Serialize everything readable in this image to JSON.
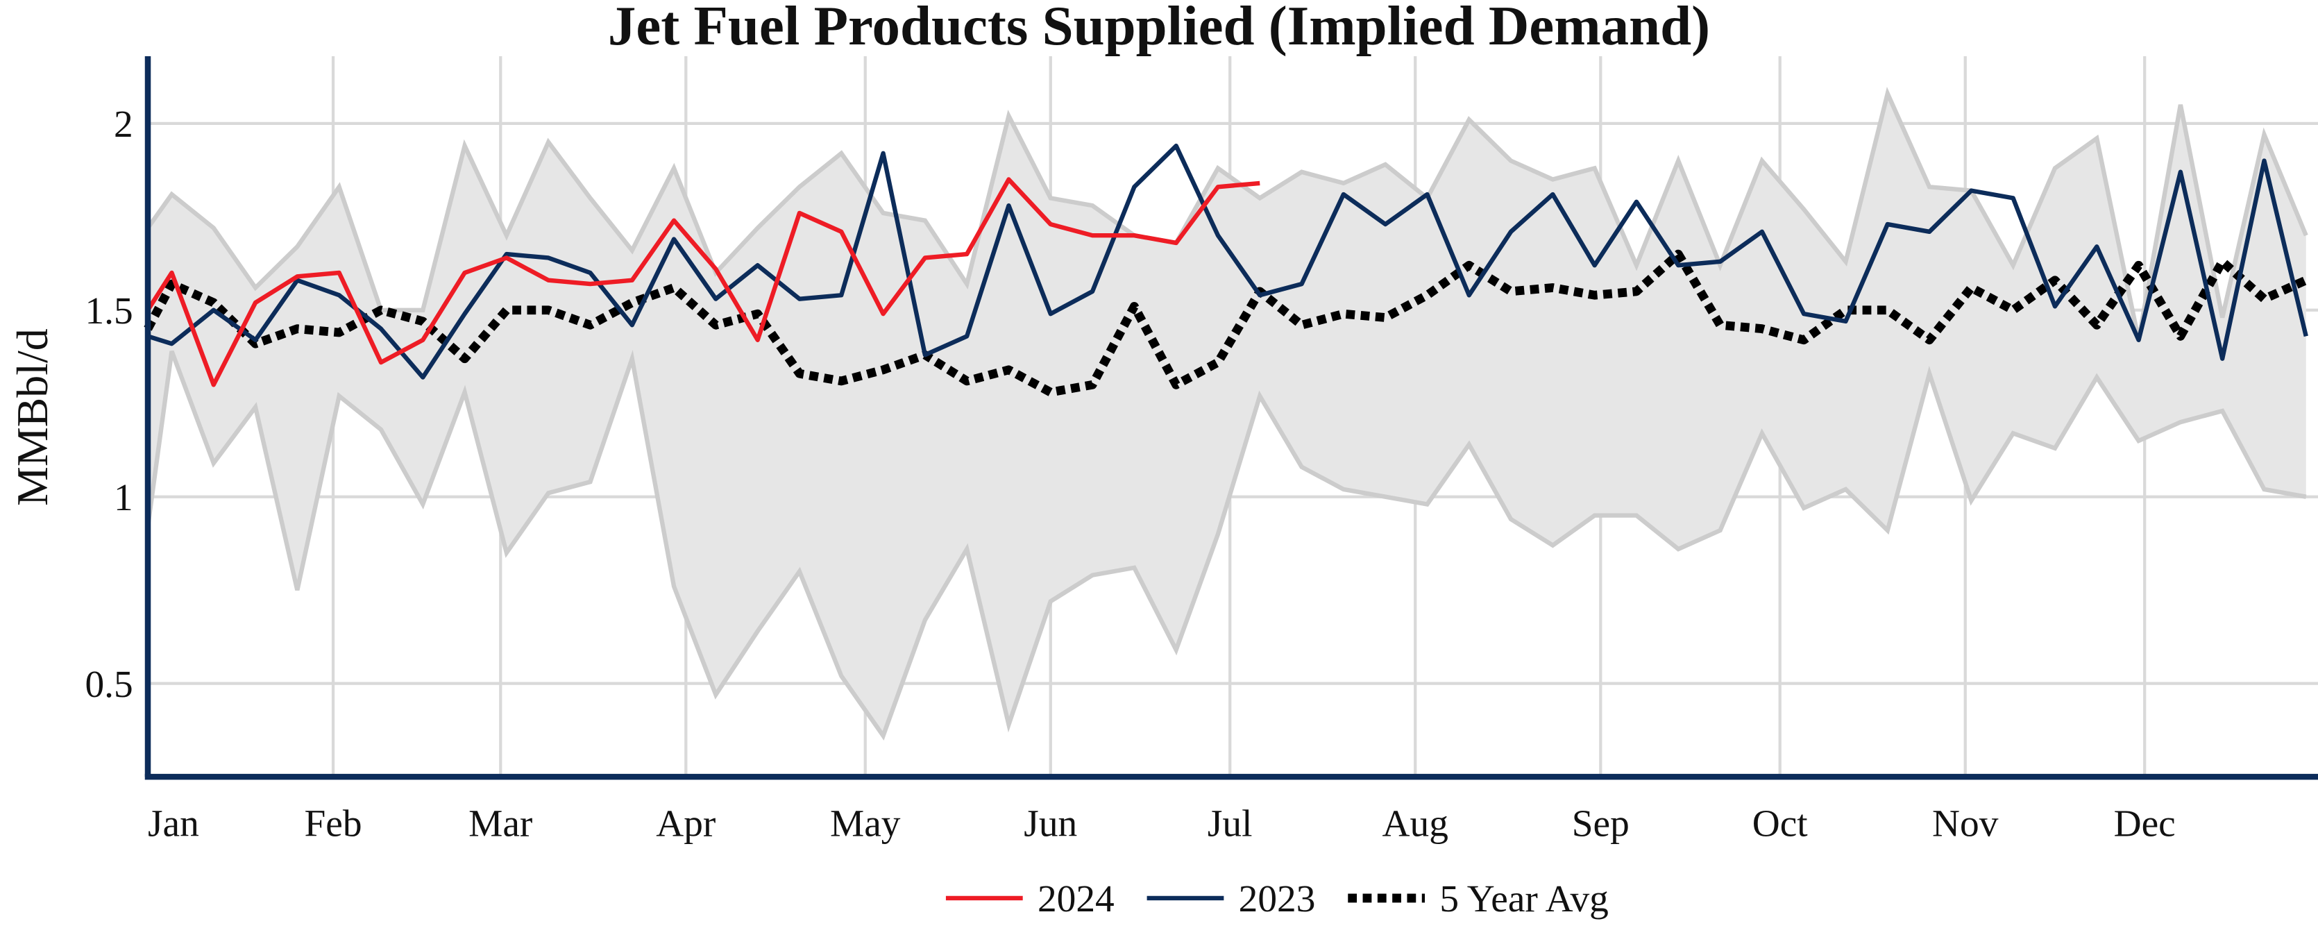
{
  "chart_data": {
    "type": "line",
    "title": "Jet Fuel Products Supplied (Implied Demand)",
    "y_label": "MMBbl/d",
    "x": [
      0,
      4,
      11,
      18,
      25,
      32,
      39,
      46,
      53,
      60,
      67,
      74,
      81,
      88,
      95,
      102,
      109,
      116,
      123,
      130,
      137,
      144,
      151,
      158,
      165,
      172,
      179,
      186,
      193,
      200,
      207,
      214,
      221,
      228,
      235,
      242,
      249,
      256,
      263,
      270,
      277,
      284,
      291,
      298,
      305,
      312,
      319,
      326,
      333,
      340,
      347,
      354,
      361
    ],
    "xlim": [
      0,
      363
    ],
    "xticks": [
      {
        "value": 0,
        "label": "Jan"
      },
      {
        "value": 31,
        "label": "Feb"
      },
      {
        "value": 59,
        "label": "Mar"
      },
      {
        "value": 90,
        "label": "Apr"
      },
      {
        "value": 120,
        "label": "May"
      },
      {
        "value": 151,
        "label": "Jun"
      },
      {
        "value": 181,
        "label": "Jul"
      },
      {
        "value": 212,
        "label": "Aug"
      },
      {
        "value": 243,
        "label": "Sep"
      },
      {
        "value": 273,
        "label": "Oct"
      },
      {
        "value": 304,
        "label": "Nov"
      },
      {
        "value": 334,
        "label": "Dec"
      }
    ],
    "ylim": [
      0.25,
      2.18
    ],
    "yticks": [
      0.5,
      1,
      1.5,
      2
    ],
    "grid": true,
    "band": {
      "color": "#e6e6e6",
      "edge_color": "#cccccc",
      "upper": [
        1.72,
        1.81,
        1.72,
        1.56,
        1.67,
        1.83,
        1.5,
        1.5,
        1.94,
        1.7,
        1.95,
        1.8,
        1.66,
        1.88,
        1.6,
        1.72,
        1.83,
        1.92,
        1.76,
        1.74,
        1.57,
        2.02,
        1.8,
        1.78,
        1.7,
        1.68,
        1.88,
        1.8,
        1.87,
        1.84,
        1.89,
        1.8,
        2.01,
        1.9,
        1.85,
        1.88,
        1.62,
        1.9,
        1.62,
        1.9,
        1.77,
        1.63,
        2.08,
        1.83,
        1.82,
        1.62,
        1.88,
        1.96,
        1.42,
        2.05,
        1.48,
        1.97,
        1.7
      ],
      "lower": [
        0.92,
        1.39,
        1.09,
        1.24,
        0.75,
        1.27,
        1.18,
        0.98,
        1.28,
        0.85,
        1.01,
        1.04,
        1.37,
        0.76,
        0.47,
        0.64,
        0.8,
        0.52,
        0.36,
        0.67,
        0.86,
        0.39,
        0.72,
        0.79,
        0.81,
        0.59,
        0.9,
        1.27,
        1.08,
        1.02,
        1.0,
        0.98,
        1.14,
        0.94,
        0.87,
        0.95,
        0.95,
        0.86,
        0.91,
        1.17,
        0.97,
        1.02,
        0.91,
        1.33,
        0.99,
        1.17,
        1.13,
        1.32,
        1.15,
        1.2,
        1.23,
        1.02,
        1.0
      ]
    },
    "series": [
      {
        "name": "2024",
        "color": "#ee1c25",
        "line_style": "solid",
        "values": [
          1.5,
          1.6,
          1.3,
          1.52,
          1.59,
          1.6,
          1.36,
          1.42,
          1.6,
          1.64,
          1.58,
          1.57,
          1.58,
          1.74,
          1.61,
          1.42,
          1.76,
          1.71,
          1.49,
          1.64,
          1.65,
          1.85,
          1.73,
          1.7,
          1.7,
          1.68,
          1.83,
          1.84,
          null,
          null,
          null,
          null,
          null,
          null,
          null,
          null,
          null,
          null,
          null,
          null,
          null,
          null,
          null,
          null,
          null,
          null,
          null,
          null,
          null,
          null,
          null,
          null,
          null
        ]
      },
      {
        "name": "2023",
        "color": "#0c2c5a",
        "line_style": "solid",
        "values": [
          1.43,
          1.41,
          1.5,
          1.42,
          1.58,
          1.54,
          1.45,
          1.32,
          1.49,
          1.65,
          1.64,
          1.6,
          1.46,
          1.69,
          1.53,
          1.62,
          1.53,
          1.54,
          1.92,
          1.38,
          1.43,
          1.78,
          1.49,
          1.55,
          1.83,
          1.94,
          1.7,
          1.54,
          1.57,
          1.81,
          1.73,
          1.81,
          1.54,
          1.71,
          1.81,
          1.62,
          1.79,
          1.62,
          1.63,
          1.71,
          1.49,
          1.47,
          1.73,
          1.71,
          1.82,
          1.8,
          1.51,
          1.67,
          1.42,
          1.87,
          1.37,
          1.9,
          1.43
        ]
      },
      {
        "name": "5 Year Avg",
        "color": "#000000",
        "line_style": "dotted",
        "values": [
          1.45,
          1.57,
          1.52,
          1.41,
          1.45,
          1.44,
          1.5,
          1.47,
          1.37,
          1.5,
          1.5,
          1.46,
          1.52,
          1.56,
          1.46,
          1.49,
          1.33,
          1.31,
          1.34,
          1.38,
          1.31,
          1.34,
          1.28,
          1.3,
          1.51,
          1.3,
          1.36,
          1.55,
          1.46,
          1.49,
          1.48,
          1.54,
          1.62,
          1.55,
          1.56,
          1.54,
          1.55,
          1.65,
          1.46,
          1.45,
          1.42,
          1.5,
          1.5,
          1.42,
          1.56,
          1.5,
          1.58,
          1.46,
          1.62,
          1.43,
          1.63,
          1.53,
          1.58
        ]
      }
    ],
    "axis_color": "#0c2c5a"
  }
}
